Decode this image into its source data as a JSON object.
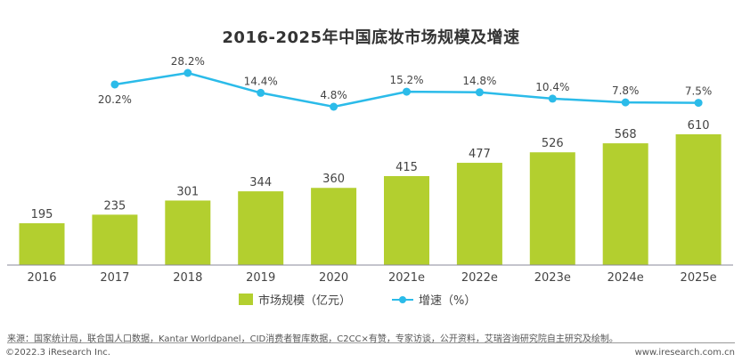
{
  "chart_data": {
    "type": "bar+line",
    "title": "2016-2025年中国底妆市场规模及增速",
    "categories": [
      "2016",
      "2017",
      "2018",
      "2019",
      "2020",
      "2021e",
      "2022e",
      "2023e",
      "2024e",
      "2025e"
    ],
    "series": [
      {
        "name": "市场规模（亿元）",
        "type": "bar",
        "color": "#b3cf2f",
        "values": [
          195,
          235,
          301,
          344,
          360,
          415,
          477,
          526,
          568,
          610
        ],
        "labels": [
          "195",
          "235",
          "301",
          "344",
          "360",
          "415",
          "477",
          "526",
          "568",
          "610"
        ]
      },
      {
        "name": "增速（%）",
        "type": "line",
        "color": "#2bbbe9",
        "values": [
          null,
          20.2,
          28.2,
          14.4,
          4.8,
          15.2,
          14.8,
          10.4,
          7.8,
          7.5
        ],
        "labels": [
          "",
          "20.2%",
          "28.2%",
          "14.4%",
          "4.8%",
          "15.2%",
          "14.8%",
          "10.4%",
          "7.8%",
          "7.5%"
        ]
      }
    ],
    "legend_position": "bottom",
    "grid": false
  },
  "footer": {
    "source": "来源：国家统计局，联合国人口数据，Kantar Worldpanel，CID消费者智库数据，C2CC×有赞，专家访谈，公开资料，艾瑞咨询研究院自主研究及绘制。",
    "copyright": "©2022.3 iResearch Inc.",
    "website": "www.iresearch.com.cn"
  }
}
